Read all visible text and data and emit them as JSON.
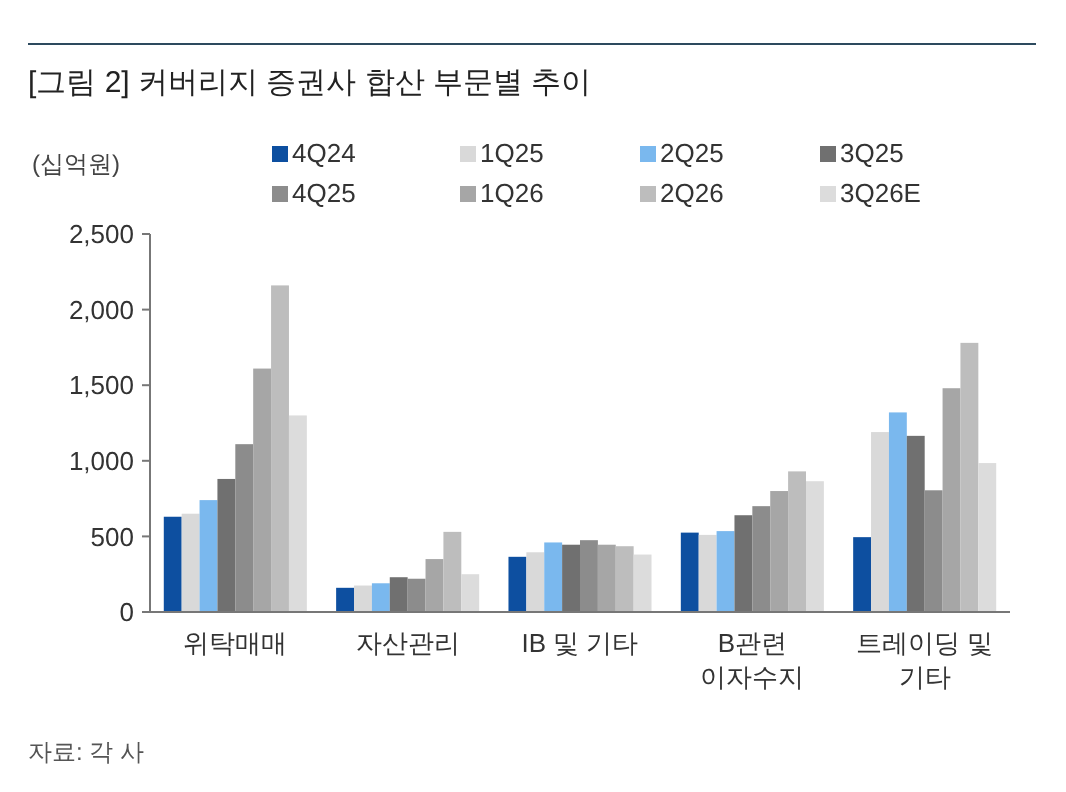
{
  "chart_data": {
    "type": "bar",
    "title": "[그림 2] 커버리지 증권사 합산 부문별 추이",
    "ylabel": "(십억원)",
    "categories": [
      "위탁매매",
      "자산관리",
      "IB 및 기타",
      "B관련\n이자수지",
      "트레이딩 및\n기타"
    ],
    "series": [
      {
        "name": "4Q24",
        "color": "#0d4fa0",
        "values": [
          630,
          160,
          365,
          525,
          495
        ]
      },
      {
        "name": "1Q25",
        "color": "#d9d9d9",
        "values": [
          650,
          175,
          395,
          510,
          1190
        ]
      },
      {
        "name": "2Q25",
        "color": "#7ab8ee",
        "values": [
          740,
          190,
          460,
          535,
          1320
        ]
      },
      {
        "name": "3Q25",
        "color": "#707070",
        "values": [
          880,
          230,
          445,
          640,
          1165
        ]
      },
      {
        "name": "4Q25",
        "color": "#8c8c8c",
        "values": [
          1110,
          220,
          475,
          700,
          805
        ]
      },
      {
        "name": "1Q26",
        "color": "#a6a6a6",
        "values": [
          1610,
          350,
          445,
          800,
          1480
        ]
      },
      {
        "name": "2Q26",
        "color": "#bdbdbd",
        "values": [
          2160,
          530,
          435,
          930,
          1780
        ]
      },
      {
        "name": "3Q26E",
        "color": "#dcdcdc",
        "values": [
          1300,
          250,
          380,
          865,
          985
        ]
      }
    ],
    "ylim": [
      0,
      2500
    ],
    "yticks": [
      0,
      {
        "value": 500,
        "label": "500"
      },
      {
        "value": 1000,
        "label": "1,000"
      },
      {
        "value": 1500,
        "label": "1,500"
      },
      {
        "value": 2000,
        "label": "2,000"
      },
      {
        "value": 2500,
        "label": "2,500"
      }
    ],
    "grid": false,
    "legend": "top",
    "annotations": [
      "자료: 각 사"
    ]
  }
}
